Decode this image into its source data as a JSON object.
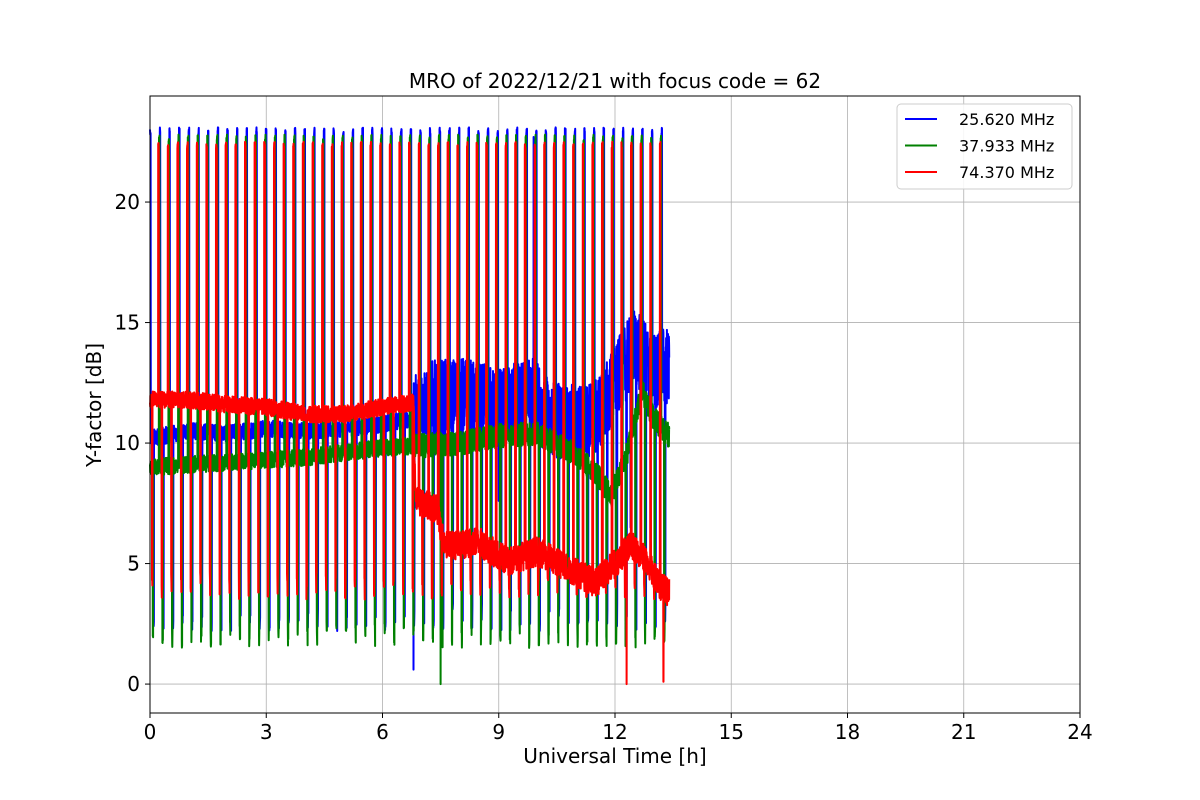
{
  "chart_data": {
    "type": "line",
    "title": "MRO of 2022/12/21 with focus code = 62",
    "xlabel": "Universal Time [h]",
    "ylabel": "Y-factor [dB]",
    "xlim": [
      0,
      24
    ],
    "ylim": [
      -1.2,
      24.4
    ],
    "xticks": [
      0,
      3,
      6,
      9,
      12,
      15,
      18,
      21,
      24
    ],
    "yticks": [
      0,
      5,
      10,
      15,
      20
    ],
    "grid": true,
    "legend_position": "top-right",
    "series": [
      {
        "name": "25.620 MHz",
        "color": "#0000ff",
        "baseline": [
          [
            0,
            10.2
          ],
          [
            1,
            10.5
          ],
          [
            2,
            10.4
          ],
          [
            3,
            10.6
          ],
          [
            4,
            10.5
          ],
          [
            5,
            10.6
          ],
          [
            6,
            10.8
          ],
          [
            6.7,
            11.0
          ],
          [
            7.2,
            11.8
          ],
          [
            8,
            12.0
          ],
          [
            9,
            11.5
          ],
          [
            9.9,
            12.0
          ],
          [
            10.3,
            11.0
          ],
          [
            11,
            10.8
          ],
          [
            11.5,
            11.0
          ],
          [
            12,
            12.5
          ],
          [
            12.5,
            14.0
          ],
          [
            13.0,
            13.0
          ],
          [
            13.4,
            13.3
          ]
        ],
        "peak": 23.1,
        "trough": 2.2,
        "spikes": [
          [
            6.8,
            0.6
          ],
          [
            9.9,
            22.7
          ],
          [
            9.0,
            7.6
          ],
          [
            12.4,
            6.5
          ]
        ]
      },
      {
        "name": "37.933 MHz",
        "color": "#008000",
        "baseline": [
          [
            0,
            9.0
          ],
          [
            1,
            9.1
          ],
          [
            2,
            9.2
          ],
          [
            3,
            9.3
          ],
          [
            4,
            9.4
          ],
          [
            5,
            9.6
          ],
          [
            6,
            9.8
          ],
          [
            7,
            9.9
          ],
          [
            8,
            10.0
          ],
          [
            9,
            10.3
          ],
          [
            10,
            10.4
          ],
          [
            10.8,
            9.7
          ],
          [
            11.5,
            8.8
          ],
          [
            11.9,
            7.8
          ],
          [
            12.3,
            9.5
          ],
          [
            12.7,
            12.2
          ],
          [
            13.0,
            11.0
          ],
          [
            13.4,
            10.3
          ]
        ],
        "peak": 22.8,
        "trough": 1.5,
        "spikes": [
          [
            7.5,
            0.0
          ],
          [
            11.8,
            6.3
          ]
        ]
      },
      {
        "name": "74.370 MHz",
        "color": "#ff0000",
        "baseline": [
          [
            0,
            11.8
          ],
          [
            1,
            11.8
          ],
          [
            2,
            11.6
          ],
          [
            3,
            11.5
          ],
          [
            4,
            11.2
          ],
          [
            5,
            11.2
          ],
          [
            6,
            11.5
          ],
          [
            6.8,
            11.7
          ],
          [
            6.85,
            7.6
          ],
          [
            7.4,
            7.3
          ],
          [
            7.6,
            5.7
          ],
          [
            8.5,
            5.9
          ],
          [
            9.2,
            5.1
          ],
          [
            10,
            5.5
          ],
          [
            10.8,
            4.8
          ],
          [
            11.5,
            4.2
          ],
          [
            12,
            5.0
          ],
          [
            12.4,
            5.8
          ],
          [
            12.8,
            5.2
          ],
          [
            13.2,
            4.0
          ],
          [
            13.4,
            3.8
          ]
        ],
        "peak": 22.5,
        "trough": 3.5,
        "spikes": [
          [
            12.3,
            0.0
          ],
          [
            13.25,
            0.1
          ]
        ]
      }
    ]
  }
}
